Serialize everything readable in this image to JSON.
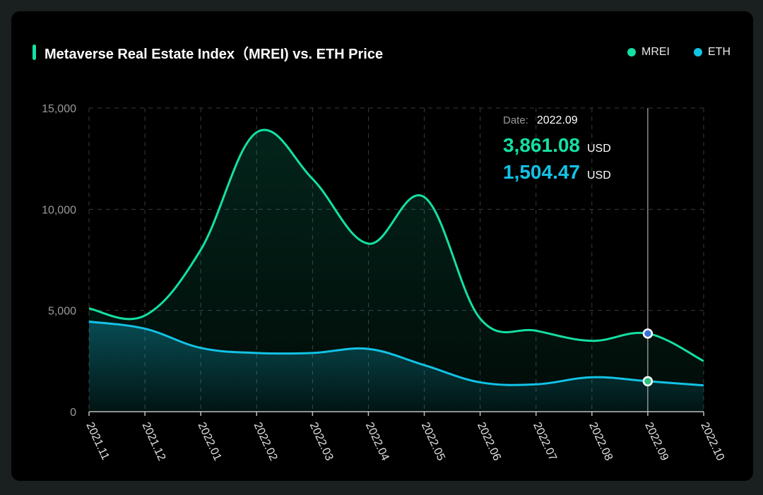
{
  "header": {
    "title": "Metaverse Real Estate Index（MREI) vs. ETH Price",
    "accent_color": "#14e0a3"
  },
  "legend": [
    {
      "label": "MREI",
      "color": "#14e0a3"
    },
    {
      "label": "ETH",
      "color": "#12c3e6"
    }
  ],
  "tooltip": {
    "date_label": "Date:",
    "date": "2022.09",
    "mrei_value": "3,861.08",
    "mrei_unit": "USD",
    "eth_value": "1,504.47",
    "eth_unit": "USD"
  },
  "chart_data": {
    "type": "line",
    "title": "Metaverse Real Estate Index（MREI) vs. ETH Price",
    "xlabel": "",
    "ylabel": "",
    "categories": [
      "2021.11",
      "2021.12",
      "2022.01",
      "2022.02",
      "2022.03",
      "2022.04",
      "2022.05",
      "2022.06",
      "2022.07",
      "2022.08",
      "2022.09",
      "2022.10"
    ],
    "ylim": [
      0,
      15000
    ],
    "yticks": [
      0,
      5000,
      10000,
      15000
    ],
    "ytick_labels": [
      "0",
      "5,000",
      "10,000",
      "15,000"
    ],
    "grid": true,
    "highlight_category": "2022.09",
    "series": [
      {
        "name": "MREI",
        "color": "#14e0a3",
        "values": [
          5100,
          4750,
          8000,
          13800,
          11500,
          8300,
          10600,
          4600,
          4000,
          3500,
          3861.08,
          2500
        ]
      },
      {
        "name": "ETH",
        "color": "#12c3e6",
        "values": [
          4450,
          4100,
          3150,
          2900,
          2900,
          3100,
          2300,
          1450,
          1350,
          1700,
          1504.47,
          1300
        ]
      }
    ]
  }
}
